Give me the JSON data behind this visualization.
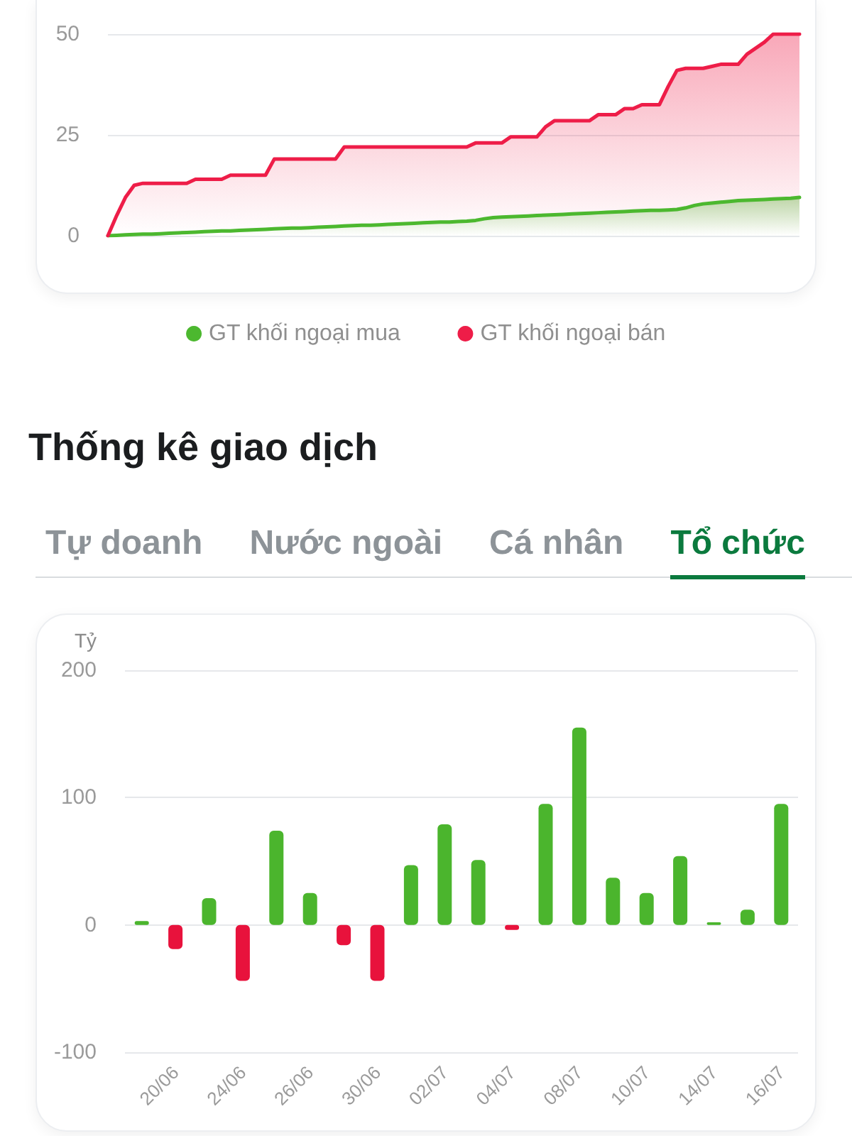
{
  "chart_data": [
    {
      "type": "area",
      "categories": [
        null,
        null,
        null,
        null,
        null,
        null,
        null,
        null,
        null,
        null,
        null,
        null,
        null,
        null,
        null,
        null,
        null,
        null,
        null,
        null,
        null,
        null,
        null,
        null,
        null,
        null,
        null,
        null,
        null,
        null,
        null,
        null,
        null,
        null,
        null,
        null,
        null,
        null,
        null,
        null,
        null,
        null,
        null,
        null,
        null,
        null,
        null,
        null,
        null,
        null,
        null,
        null,
        null,
        null,
        null,
        null,
        null,
        null,
        null,
        null,
        null,
        null,
        null,
        null,
        null,
        null,
        null,
        null,
        null,
        null,
        null,
        null,
        null,
        null,
        null,
        null,
        null,
        null,
        null,
        null
      ],
      "series": [
        {
          "name": "GT khối ngoại mua",
          "color": "#4cb82f",
          "values": [
            0,
            0.1,
            0.2,
            0.3,
            0.4,
            0.4,
            0.5,
            0.6,
            0.7,
            0.8,
            0.9,
            1.0,
            1.1,
            1.2,
            1.2,
            1.3,
            1.4,
            1.5,
            1.6,
            1.7,
            1.8,
            1.9,
            1.9,
            2.0,
            2.1,
            2.2,
            2.3,
            2.4,
            2.5,
            2.6,
            2.6,
            2.7,
            2.8,
            2.9,
            3.0,
            3.1,
            3.2,
            3.3,
            3.4,
            3.4,
            3.5,
            3.6,
            3.8,
            4.2,
            4.5,
            4.6,
            4.7,
            4.8,
            4.9,
            5.0,
            5.1,
            5.2,
            5.3,
            5.4,
            5.5,
            5.6,
            5.7,
            5.8,
            5.9,
            6.0,
            6.1,
            6.2,
            6.3,
            6.3,
            6.4,
            6.5,
            6.9,
            7.5,
            7.9,
            8.1,
            8.3,
            8.5,
            8.7,
            8.8,
            8.9,
            9.0,
            9.1,
            9.2,
            9.3,
            9.5
          ]
        },
        {
          "name": "GT khối ngoại bán",
          "color": "#ee1d48",
          "values": [
            0,
            5,
            9.5,
            12.5,
            13,
            13,
            13,
            13,
            13,
            13,
            14,
            14,
            14,
            14,
            15,
            15,
            15,
            15,
            15,
            19,
            19,
            19,
            19,
            19,
            19,
            19,
            19,
            22,
            22,
            22,
            22,
            22,
            22,
            22,
            22,
            22,
            22,
            22,
            22,
            22,
            22,
            22,
            23,
            23,
            23,
            23,
            24.5,
            24.5,
            24.5,
            24.5,
            27,
            28.5,
            28.5,
            28.5,
            28.5,
            28.5,
            30,
            30,
            30,
            31.5,
            31.5,
            32.5,
            32.5,
            32.5,
            37,
            41,
            41.5,
            41.5,
            41.5,
            42,
            42.5,
            42.5,
            42.5,
            45,
            46.5,
            48,
            50,
            50,
            50,
            50
          ]
        }
      ],
      "ylim": [
        0,
        50
      ],
      "yticks": [
        0,
        25,
        50
      ],
      "grid": "y",
      "legend": "bottom",
      "marker": "none"
    },
    {
      "type": "bar",
      "title": "Thống kê giao dịch",
      "annotations": [
        "Tự doanh",
        "Nước ngoài",
        "Cá nhân",
        "Tổ chức"
      ],
      "ylabel": "Tỷ",
      "categories": [
        null,
        "20/06",
        null,
        "24/06",
        null,
        "26/06",
        null,
        "30/06",
        null,
        "02/07",
        null,
        "04/07",
        null,
        "08/07",
        null,
        "10/07",
        null,
        "14/07",
        null,
        "16/07"
      ],
      "values": [
        3,
        -19,
        21,
        -44,
        74,
        25,
        -16,
        -44,
        47,
        79,
        51,
        -4,
        95,
        155,
        37,
        25,
        54,
        2,
        12,
        95
      ],
      "colors": [
        "#4bb52d",
        "#e8123c",
        "#4bb52d",
        "#e8123c",
        "#4bb52d",
        "#4bb52d",
        "#e8123c",
        "#e8123c",
        "#4bb52d",
        "#4bb52d",
        "#4bb52d",
        "#e8123c",
        "#4bb52d",
        "#4bb52d",
        "#4bb52d",
        "#4bb52d",
        "#4bb52d",
        "#4bb52d",
        "#4bb52d",
        "#4bb52d"
      ],
      "ylim": [
        -100,
        200
      ],
      "yticks": [
        -100,
        0,
        100,
        200
      ],
      "grid": "y"
    }
  ]
}
